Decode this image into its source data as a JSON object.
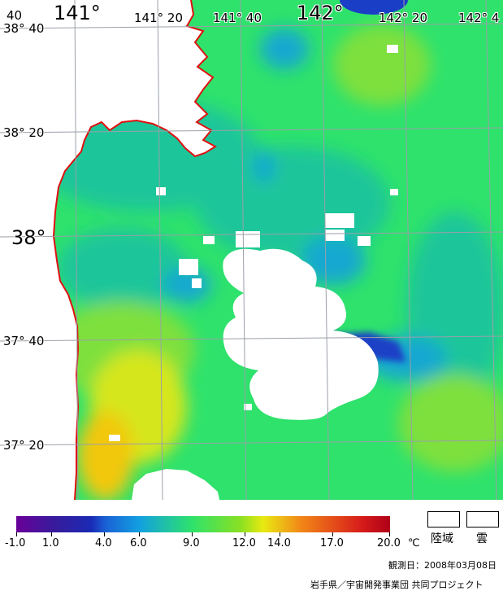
{
  "map": {
    "colors": {
      "land": "#ffffff",
      "coastline": "#e01010",
      "grid": "#9aa0a8",
      "cloud": "#ffffff",
      "sst_9": "#2ee26c",
      "sst_8": "#1cc69a",
      "sst_6": "#18a8d0",
      "sst_4": "#1a3fc6",
      "sst_10": "#7ee03c",
      "sst_12": "#d6e61a",
      "sst_13": "#f2c80e"
    },
    "lon_labels": {
      "corner_lon": "40",
      "lon_141": "141°",
      "lon_141_20": "141° 20",
      "lon_141_40": "141° 40",
      "lon_142": "142°",
      "lon_142_20": "142° 20",
      "lon_142_40": "142° 4"
    },
    "lat_labels": {
      "lat_38_40": "38° 40",
      "lat_38_20": "38° 20",
      "lat_38": "38°",
      "lat_37_40": "37° 40",
      "lat_37_20": "37° 20"
    }
  },
  "legend": {
    "ticks": [
      "-1.0",
      "1.0",
      "4.0",
      "6.0",
      "9.0",
      "12.0",
      "14.0",
      "17.0",
      "20.0"
    ],
    "unit": "℃",
    "land_label": "陸域",
    "cloud_label": "雲"
  },
  "footer": {
    "observation_date": "観測日：2008年03月08日",
    "credit": "岩手県／宇宙開発事業団 共同プロジェクト"
  }
}
